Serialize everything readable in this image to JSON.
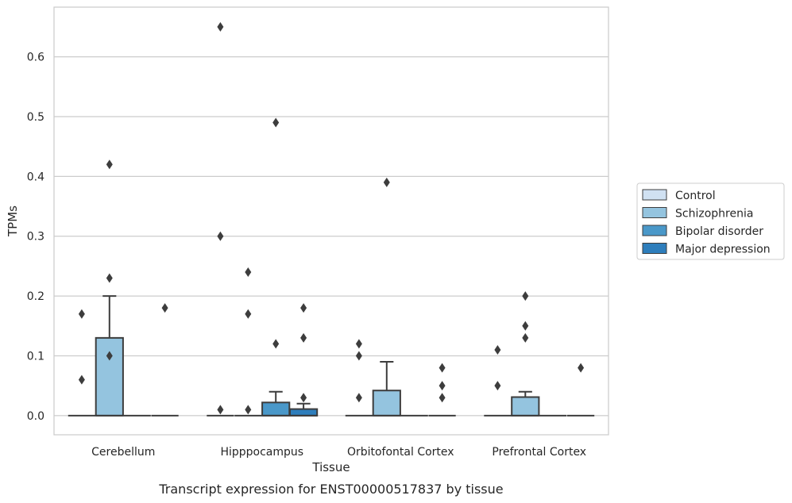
{
  "chart_data": {
    "type": "box",
    "caption": "Transcript expression for ENST00000517837 by tissue",
    "xlabel": "Tissue",
    "ylabel": "TPMs",
    "ylim": [
      -0.032,
      0.683
    ],
    "yticks": [
      0.0,
      0.1,
      0.2,
      0.3,
      0.4,
      0.5,
      0.6
    ],
    "ytick_labels": [
      "0.0",
      "0.1",
      "0.2",
      "0.3",
      "0.4",
      "0.5",
      "0.6"
    ],
    "grid": "horizontal",
    "legend_position": "right",
    "categories": [
      "Cerebellum",
      "Hipppocampus",
      "Orbitofontal Cortex",
      "Prefrontal Cortex"
    ],
    "series": [
      {
        "name": "Control",
        "color": "#d0e1f2",
        "boxes": [
          {
            "q1": 0,
            "median": 0,
            "q3": 0,
            "whislo": 0,
            "whishi": 0,
            "fliers": [
              0.06,
              0.17
            ]
          },
          {
            "q1": 0,
            "median": 0,
            "q3": 0,
            "whislo": 0,
            "whishi": 0,
            "fliers": [
              0.01,
              0.3,
              0.65
            ]
          },
          {
            "q1": 0,
            "median": 0,
            "q3": 0,
            "whislo": 0,
            "whishi": 0,
            "fliers": [
              0.03,
              0.1,
              0.12
            ]
          },
          {
            "q1": 0,
            "median": 0,
            "q3": 0,
            "whislo": 0,
            "whishi": 0,
            "fliers": [
              0.05,
              0.11
            ]
          }
        ]
      },
      {
        "name": "Schizophrenia",
        "color": "#94c4df",
        "boxes": [
          {
            "q1": 0,
            "median": 0,
            "q3": 0.13,
            "whislo": 0,
            "whishi": 0.2,
            "fliers": [
              0.1,
              0.23,
              0.42
            ]
          },
          {
            "q1": 0,
            "median": 0,
            "q3": 0,
            "whislo": 0,
            "whishi": 0,
            "fliers": [
              0.01,
              0.17,
              0.24
            ]
          },
          {
            "q1": 0,
            "median": 0,
            "q3": 0.042,
            "whislo": 0,
            "whishi": 0.09,
            "fliers": [
              0.39
            ]
          },
          {
            "q1": 0,
            "median": 0,
            "q3": 0.031,
            "whislo": 0,
            "whishi": 0.04,
            "fliers": [
              0.13,
              0.15,
              0.2
            ]
          }
        ]
      },
      {
        "name": "Bipolar disorder",
        "color": "#4a98c9",
        "boxes": [
          {
            "q1": 0,
            "median": 0,
            "q3": 0,
            "whislo": 0,
            "whishi": 0,
            "fliers": []
          },
          {
            "q1": 0,
            "median": 0,
            "q3": 0.022,
            "whislo": 0,
            "whishi": 0.04,
            "fliers": [
              0.12,
              0.49
            ]
          },
          {
            "q1": 0,
            "median": 0,
            "q3": 0,
            "whislo": 0,
            "whishi": 0,
            "fliers": []
          },
          {
            "q1": 0,
            "median": 0,
            "q3": 0,
            "whislo": 0,
            "whishi": 0,
            "fliers": []
          }
        ]
      },
      {
        "name": "Major depression",
        "color": "#2e7ebc",
        "boxes": [
          {
            "q1": 0,
            "median": 0,
            "q3": 0,
            "whislo": 0,
            "whishi": 0,
            "fliers": [
              0.18
            ]
          },
          {
            "q1": 0,
            "median": 0,
            "q3": 0.011,
            "whislo": 0,
            "whishi": 0.02,
            "fliers": [
              0.03,
              0.13,
              0.18
            ]
          },
          {
            "q1": 0,
            "median": 0,
            "q3": 0,
            "whislo": 0,
            "whishi": 0,
            "fliers": [
              0.03,
              0.05,
              0.08
            ]
          },
          {
            "q1": 0,
            "median": 0,
            "q3": 0,
            "whislo": 0,
            "whishi": 0,
            "fliers": [
              0.08
            ]
          }
        ]
      }
    ]
  }
}
